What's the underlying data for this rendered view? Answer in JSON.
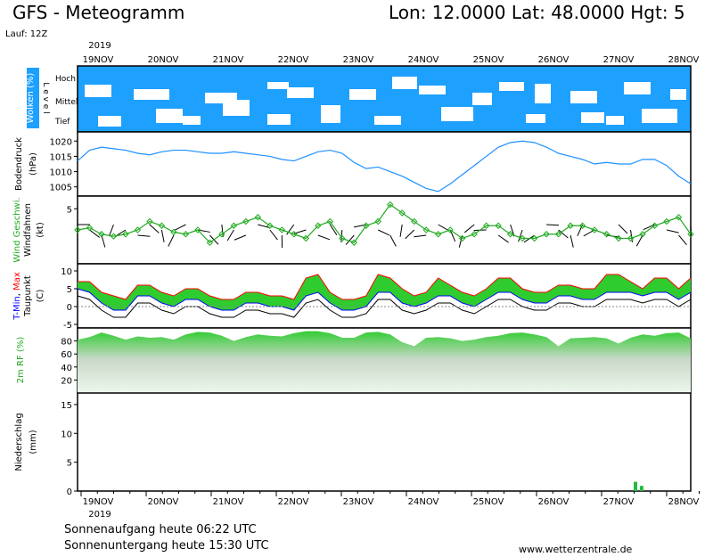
{
  "header": {
    "title": "GFS - Meteogramm",
    "coords": "Lon: 12.0000 Lat: 48.0000 Hgt: 5",
    "run": "Lauf: 12Z"
  },
  "footer": {
    "sunrise": "Sonnenaufgang heute 06:22 UTC",
    "sunset": "Sonnenuntergang heute 15:30 UTC",
    "credit": "www.wetterzentrale.de"
  },
  "colors": {
    "cloud": "#1ea0ff",
    "pressure": "#1e90ff",
    "wind": "#22aa22",
    "tmin": "#0000ff",
    "tmax": "#ff0000",
    "temp_fill": "#2ecc2e",
    "temp_fill_light": "#a8e04a",
    "rh_fill": "#33cc33",
    "precip": "#22bb44"
  },
  "chart_data": {
    "time_axis": {
      "year_label": "2019",
      "ticks": [
        "19NOV",
        "20NOV",
        "21NOV",
        "22NOV",
        "23NOV",
        "24NOV",
        "25NOV",
        "26NOV",
        "27NOV",
        "28NOV"
      ]
    },
    "panels": [
      {
        "id": "clouds",
        "type": "heatmap",
        "ylabel": "Wolken (%)",
        "level_label": "L e v e l",
        "levels": [
          "Hoch",
          "Mittel",
          "Tief"
        ]
      },
      {
        "id": "pressure",
        "type": "line",
        "ylabel": [
          "Bodendruck",
          "(hPa)"
        ],
        "yticks": [
          1005,
          1010,
          1015,
          1020
        ],
        "ylim": [
          1002,
          1023
        ],
        "values": [
          1013.5,
          1017,
          1018,
          1017.5,
          1017,
          1016,
          1015.5,
          1016.5,
          1017,
          1017,
          1016.5,
          1016,
          1016,
          1016.5,
          1016,
          1015.5,
          1015,
          1014,
          1013.5,
          1015,
          1016.5,
          1017,
          1016,
          1013,
          1011,
          1011.5,
          1010,
          1008.5,
          1006.5,
          1004.5,
          1003.5,
          1006,
          1009,
          1012,
          1015,
          1018,
          1019.5,
          1020,
          1019.5,
          1018,
          1016,
          1015,
          1014,
          1012.5,
          1013,
          1012.5,
          1012.5,
          1014,
          1014,
          1012,
          1008.5,
          1006
        ]
      },
      {
        "id": "wind",
        "type": "line",
        "ylabel": [
          "Wind Geschwi.",
          "Windfahnen",
          "(kt)"
        ],
        "yticks": [
          5
        ],
        "values": [
          0,
          0.5,
          -1,
          -1.5,
          -1,
          0,
          2,
          1,
          -0.5,
          -1,
          0,
          -3,
          -1,
          1,
          2,
          3,
          1,
          0,
          -1,
          -2,
          1,
          2,
          -2,
          -3,
          1,
          2,
          6,
          4,
          2,
          0,
          -1,
          0,
          -2,
          -1,
          1,
          1,
          -1,
          -2,
          -2,
          -1,
          -1,
          1,
          1,
          0,
          -1,
          -2,
          -2,
          -1,
          1,
          2,
          3,
          -1
        ]
      },
      {
        "id": "temperature",
        "type": "area",
        "ylabel": [
          "T-Min, Max",
          "Taupunkt",
          "(C)"
        ],
        "series_labels": [
          "T-Min",
          "Max"
        ],
        "yticks": [
          -5,
          0,
          5,
          10
        ],
        "ylim": [
          -6,
          12
        ],
        "tmax": [
          7,
          7,
          4,
          3,
          2,
          6,
          6,
          4,
          3,
          5,
          5,
          3,
          2,
          2,
          4,
          4,
          3,
          3,
          2,
          8,
          9,
          4,
          2,
          2,
          3,
          9,
          8,
          5,
          3,
          4,
          8,
          6,
          4,
          3,
          5,
          8,
          8,
          5,
          4,
          4,
          6,
          6,
          5,
          5,
          9,
          9,
          7,
          5,
          8,
          8,
          5,
          8
        ],
        "tmin": [
          5,
          4,
          1,
          -1,
          -1,
          3,
          3,
          1,
          0,
          2,
          2,
          0,
          -1,
          -1,
          1,
          1,
          0,
          0,
          -1,
          3,
          4,
          1,
          -1,
          -1,
          0,
          4,
          4,
          1,
          0,
          1,
          3,
          3,
          1,
          0,
          2,
          4,
          4,
          2,
          1,
          1,
          3,
          3,
          2,
          2,
          4,
          4,
          4,
          3,
          4,
          4,
          2,
          4
        ]
      },
      {
        "id": "humidity",
        "type": "area",
        "ylabel": "2m RF (%)",
        "yticks": [
          20,
          40,
          60,
          80
        ],
        "ylim": [
          0,
          100
        ],
        "values": [
          82,
          86,
          93,
          88,
          82,
          87,
          85,
          86,
          82,
          90,
          94,
          93,
          88,
          80,
          86,
          90,
          88,
          87,
          92,
          95,
          95,
          92,
          85,
          85,
          93,
          94,
          90,
          78,
          72,
          85,
          86,
          84,
          80,
          82,
          86,
          88,
          92,
          93,
          90,
          86,
          72,
          84,
          85,
          86,
          84,
          76,
          85,
          90,
          88,
          92,
          93,
          84
        ]
      },
      {
        "id": "precipitation",
        "type": "bar",
        "ylabel": [
          "Niederschlag",
          "(mm)"
        ],
        "yticks": [
          0,
          5,
          10,
          15
        ],
        "ylim": [
          0,
          17
        ],
        "bars": [
          {
            "x": 0.907,
            "value": 1.6
          },
          {
            "x": 0.917,
            "value": 0.9
          }
        ]
      }
    ]
  }
}
